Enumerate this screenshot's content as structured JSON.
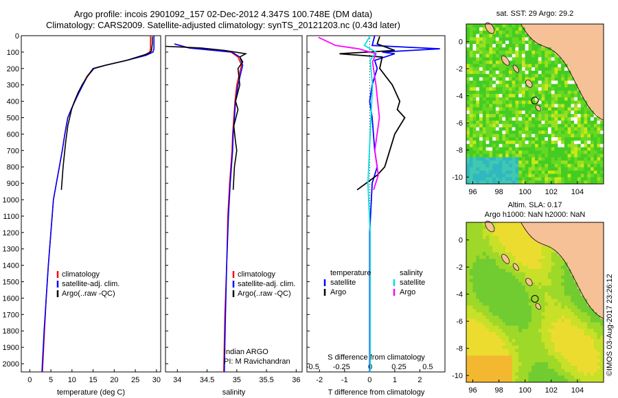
{
  "titles": {
    "line1": "Argo profile: incois 2901092_157 02-Dec-2012 4.347S 100.748E (DM data)",
    "line2": "Climatology: CARS2009. Satellite-adjusted climatology: synTS_20121203.nc (0.43d later)"
  },
  "credit": "©IMOS 03-Aug-2017 23:26:12",
  "colors": {
    "clim": "#ff0000",
    "sat": "#0000ff",
    "argo": "#000000",
    "sat_sal": "#00e0e0",
    "argo_sal": "#ff00ff"
  },
  "chart_data": [
    {
      "type": "line",
      "id": "temperature",
      "xlabel": "temperature (deg C)",
      "ylabel": "",
      "xlim": [
        -2,
        31
      ],
      "ylim": [
        2050,
        0
      ],
      "xticks": [
        0,
        5,
        10,
        15,
        20,
        25,
        30
      ],
      "yticks": [
        0,
        100,
        200,
        300,
        400,
        500,
        600,
        700,
        800,
        900,
        1000,
        1100,
        1200,
        1300,
        1400,
        1500,
        1600,
        1700,
        1800,
        1900,
        2000
      ],
      "legend": [
        "climatology",
        "satellite-adj. clim.",
        "Argo(..raw -QC)"
      ],
      "series": [
        {
          "name": "climatology",
          "color": "#ff0000",
          "x": [
            28.6,
            28.6,
            28.6,
            28.4,
            27.0,
            23.0,
            18.0,
            15.0,
            13.5,
            12.5,
            11.5,
            10.6,
            9.8,
            9.0,
            8.3,
            7.7,
            7.0,
            6.3,
            5.6,
            5.0,
            4.4,
            3.9,
            3.5,
            3.0
          ],
          "y": [
            0,
            40,
            80,
            100,
            120,
            150,
            180,
            200,
            250,
            300,
            350,
            400,
            450,
            500,
            600,
            700,
            800,
            900,
            1000,
            1200,
            1400,
            1600,
            1800,
            2050
          ]
        },
        {
          "name": "satellite-adj. clim.",
          "color": "#0000ff",
          "x": [
            29.4,
            29.4,
            29.4,
            29.2,
            27.5,
            23.0,
            18.0,
            15.0,
            13.6,
            12.6,
            11.6,
            10.7,
            9.8,
            9.0,
            8.3,
            7.7,
            7.0,
            6.3,
            5.6,
            5.0,
            4.4,
            3.9,
            3.4,
            2.9
          ],
          "y": [
            0,
            40,
            80,
            100,
            120,
            150,
            180,
            200,
            250,
            300,
            350,
            400,
            450,
            500,
            600,
            700,
            800,
            900,
            1000,
            1200,
            1400,
            1600,
            1800,
            2050
          ]
        },
        {
          "name": "Argo(..raw -QC)",
          "color": "#000000",
          "x": [
            29.0,
            29.0,
            28.8,
            28.0,
            23.0,
            18.0,
            15.2,
            13.6,
            12.4,
            11.4,
            10.6,
            9.9,
            9.0,
            8.5,
            7.9,
            7.5
          ],
          "y": [
            5,
            50,
            95,
            110,
            150,
            180,
            200,
            250,
            300,
            350,
            400,
            450,
            550,
            650,
            800,
            940
          ]
        }
      ]
    },
    {
      "type": "line",
      "id": "salinity",
      "xlabel": "salinity",
      "xlim": [
        33.8,
        36.1
      ],
      "ylim": [
        2050,
        0
      ],
      "xticks": [
        34,
        34.5,
        35,
        35.5,
        36
      ],
      "legend": [
        "climatology",
        "satellite-adj. clim.",
        "Argo(..raw -QC)"
      ],
      "annotation": [
        "Indian ARGO",
        "PI: M Ravichandran"
      ],
      "series": [
        {
          "name": "climatology",
          "color": "#ff0000",
          "x": [
            33.95,
            34.2,
            34.9,
            35.02,
            35.08,
            35.0,
            34.97,
            34.95,
            34.93,
            34.92,
            34.88,
            34.85,
            34.83,
            34.8,
            34.78
          ],
          "y": [
            50,
            75,
            100,
            130,
            180,
            300,
            400,
            500,
            600,
            700,
            900,
            1100,
            1400,
            1700,
            2050
          ]
        },
        {
          "name": "satellite-adj. clim.",
          "color": "#0000ff",
          "x": [
            33.95,
            34.2,
            34.92,
            35.05,
            35.1,
            35.02,
            34.98,
            34.96,
            34.94,
            34.93,
            34.89,
            34.86,
            34.83,
            34.81,
            34.79
          ],
          "y": [
            50,
            75,
            100,
            130,
            180,
            300,
            400,
            500,
            600,
            700,
            900,
            1100,
            1400,
            1700,
            2050
          ]
        },
        {
          "name": "Argo(..raw -QC)",
          "color": "#000000",
          "x": [
            33.8,
            34.4,
            34.8,
            35.15,
            35.05,
            35.1,
            35.02,
            35.05,
            34.98,
            35.02,
            34.95,
            34.98,
            35.0,
            34.96,
            34.94
          ],
          "y": [
            65,
            75,
            90,
            110,
            130,
            160,
            200,
            300,
            400,
            450,
            550,
            650,
            700,
            800,
            940
          ]
        }
      ]
    },
    {
      "type": "line",
      "id": "difference",
      "xlabel": "T difference from climatology",
      "xlabel_top": "S difference from climatology",
      "xlim_T": [
        -2.5,
        3.0
      ],
      "xticks_T": [
        -2,
        -1,
        0,
        1,
        2
      ],
      "xlim_S": [
        -0.55,
        0.65
      ],
      "xticks_S": [
        -0.5,
        -0.25,
        0,
        0.25,
        0.5
      ],
      "xticklabels_S": [
        "-0.5",
        "-0.25",
        "0",
        "0.25",
        "0.5"
      ],
      "ylim": [
        2050,
        0
      ],
      "legend": {
        "temperature": [
          "satellite",
          "Argo"
        ],
        "salinity": [
          "satellite",
          "Argo"
        ]
      },
      "series": [
        {
          "name": "satellite",
          "group": "temperature",
          "color": "#0000ff",
          "axis": "T",
          "x": [
            0.2,
            0.1,
            2.8,
            0.5,
            1.0,
            0.2,
            0.3,
            0.1,
            0.0,
            0.1,
            0.2,
            0.3,
            0.1,
            0.0,
            0.0,
            0.0
          ],
          "y": [
            0,
            60,
            80,
            100,
            110,
            150,
            200,
            300,
            400,
            500,
            700,
            800,
            900,
            1200,
            1600,
            2050
          ]
        },
        {
          "name": "Argo",
          "group": "temperature",
          "color": "#000000",
          "axis": "T",
          "x": [
            0.4,
            0.3,
            1.0,
            -1.2,
            0.5,
            0.4,
            0.9,
            1.2,
            1.1,
            1.4,
            1.0,
            0.8,
            0.6,
            0.3,
            -0.5
          ],
          "y": [
            5,
            50,
            90,
            110,
            130,
            200,
            300,
            400,
            450,
            500,
            600,
            700,
            800,
            850,
            940
          ]
        },
        {
          "name": "satellite",
          "group": "salinity",
          "color": "#00e0e0",
          "axis": "S",
          "x": [
            0.0,
            -0.05,
            0.05,
            0.0,
            0.02,
            0.0,
            -0.02,
            0.0,
            0.0,
            0.0
          ],
          "y": [
            0,
            60,
            100,
            150,
            300,
            600,
            900,
            1200,
            1600,
            2050
          ]
        },
        {
          "name": "Argo",
          "group": "salinity",
          "color": "#ff00ff",
          "axis": "S",
          "x": [
            -0.45,
            -0.3,
            -0.1,
            0.05,
            0.02,
            0.05,
            0.08,
            0.04,
            0.07,
            0.03
          ],
          "y": [
            10,
            60,
            80,
            110,
            160,
            300,
            500,
            700,
            850,
            940
          ]
        }
      ]
    },
    {
      "type": "heatmap",
      "id": "sst-map",
      "title": "sat. SST: 29 Argo: 29.2",
      "xlim": [
        95.5,
        106
      ],
      "ylim": [
        -10.5,
        1.3
      ],
      "xticks": [
        96,
        98,
        100,
        102,
        104
      ],
      "yticks": [
        0,
        -2,
        -4,
        -6,
        -8,
        -10
      ],
      "argo_position": [
        100.748,
        -4.347
      ]
    },
    {
      "type": "heatmap",
      "id": "sla-map",
      "title": "Altim. SLA: 0.17",
      "subtitle": "Argo h1000: NaN h2000: NaN",
      "xlim": [
        95.5,
        106
      ],
      "ylim": [
        -10.5,
        1.3
      ],
      "xticks": [
        96,
        98,
        100,
        102,
        104
      ],
      "yticks": [
        0,
        -2,
        -4,
        -6,
        -8,
        -10
      ],
      "argo_position": [
        100.748,
        -4.347
      ]
    }
  ]
}
